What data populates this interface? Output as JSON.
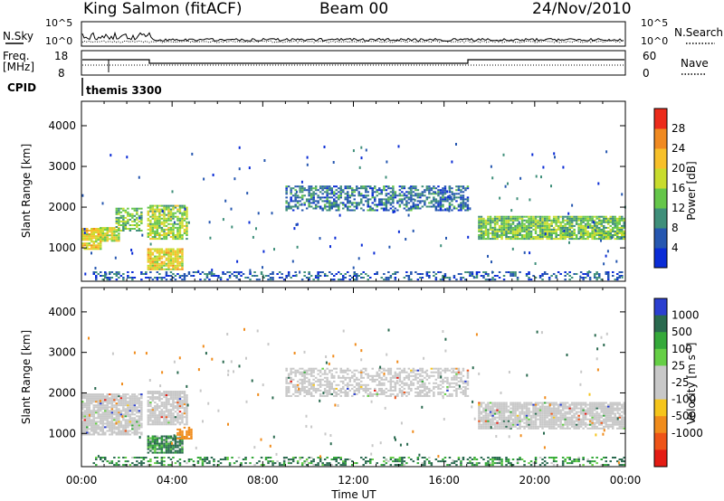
{
  "header": {
    "title_left": "King Salmon (fitACF)",
    "title_center": "Beam 00",
    "title_right": "24/Nov/2010"
  },
  "panels": {
    "nsky": {
      "label": "N.Sky",
      "tick_top": "10^5",
      "tick_bottom": "10^0",
      "right_label": "N.Search",
      "right_tick_top": "10^5",
      "right_tick_bottom": "10^0"
    },
    "freq": {
      "label_line1": "Freq.",
      "label_line2": "[MHz]",
      "tick_top": "18",
      "tick_bottom": "8",
      "right_label": "Nave",
      "right_tick_top": "60",
      "right_tick_bottom": "0"
    },
    "cpid": {
      "label": "CPID",
      "program": "themis 3300"
    }
  },
  "colors": {
    "power": [
      "#0a2cd6",
      "#2657b0",
      "#3f8f7a",
      "#65c64a",
      "#c8dc2e",
      "#f7c02a",
      "#f08a21",
      "#ec2b1b"
    ],
    "velocity": [
      "#2b3fd0",
      "#2a6a4f",
      "#35a93a",
      "#66cf46",
      "#c8c8c8",
      "#c8c8c8",
      "#f5c51c",
      "#f08c1c",
      "#ee5418",
      "#e41c14"
    ],
    "ground_scatter": "#c8c8c8"
  },
  "chart_data": [
    {
      "type": "heatmap",
      "quantity": "Power",
      "xlabel": "",
      "ylabel": "Slant Range [km]",
      "colorbar_label": "Power [dB]",
      "colorbar_ticks": [
        "4",
        "8",
        "12",
        "16",
        "20",
        "24",
        "28"
      ],
      "clim": [
        0,
        32
      ],
      "ylim": [
        180,
        4600
      ],
      "yticks": [
        "1000",
        "2000",
        "3000",
        "4000"
      ],
      "xlim": [
        0,
        24
      ],
      "scatter_regions": [
        {
          "t": [
            0.0,
            0.8
          ],
          "r": [
            950,
            1450
          ],
          "p": 20,
          "density": 0.9
        },
        {
          "t": [
            0.8,
            1.7
          ],
          "r": [
            1150,
            1500
          ],
          "p": 18,
          "density": 0.85
        },
        {
          "t": [
            1.5,
            2.7
          ],
          "r": [
            1400,
            1950
          ],
          "p": 14,
          "density": 0.6
        },
        {
          "t": [
            2.9,
            4.6
          ],
          "r": [
            1200,
            2050
          ],
          "p": 16,
          "density": 0.8
        },
        {
          "t": [
            2.9,
            4.4
          ],
          "r": [
            450,
            950
          ],
          "p": 20,
          "density": 0.9
        },
        {
          "t": [
            9.0,
            17.0
          ],
          "r": [
            1900,
            2500
          ],
          "p": 8,
          "density": 0.55
        },
        {
          "t": [
            17.5,
            24.0
          ],
          "r": [
            1200,
            1750
          ],
          "p": 14,
          "density": 0.85
        },
        {
          "t": [
            0.5,
            24.0
          ],
          "r": [
            200,
            420
          ],
          "p": 6,
          "density": 0.35
        }
      ]
    },
    {
      "type": "heatmap",
      "quantity": "Velocity",
      "xlabel": "Time UT",
      "ylabel": "Slant Range [km]",
      "colorbar_label": "Velocity [m s^-1]",
      "colorbar_ticks": [
        "1000",
        "500",
        "100",
        "25",
        "-25",
        "-100",
        "-500",
        "-1000"
      ],
      "clim": [
        -1250,
        1250
      ],
      "ylim": [
        180,
        4600
      ],
      "yticks": [
        "1000",
        "2000",
        "3000",
        "4000"
      ],
      "xlim": [
        0,
        24
      ],
      "xticks": [
        "00:00",
        "04:00",
        "08:00",
        "12:00",
        "16:00",
        "20:00",
        "00:00"
      ],
      "scatter_regions": [
        {
          "t": [
            0.0,
            2.7
          ],
          "r": [
            950,
            1950
          ],
          "v": "ground",
          "density": 0.85
        },
        {
          "t": [
            2.9,
            4.6
          ],
          "r": [
            1200,
            2050
          ],
          "v": "ground",
          "density": 0.8
        },
        {
          "t": [
            2.9,
            4.4
          ],
          "r": [
            500,
            950
          ],
          "v": 110,
          "density": 0.85
        },
        {
          "t": [
            4.2,
            4.8
          ],
          "r": [
            850,
            1150
          ],
          "v": -250,
          "density": 0.8
        },
        {
          "t": [
            9.0,
            17.0
          ],
          "r": [
            1900,
            2600
          ],
          "v": "ground",
          "density": 0.55
        },
        {
          "t": [
            17.5,
            24.0
          ],
          "r": [
            1100,
            1750
          ],
          "v": "ground",
          "density": 0.85
        },
        {
          "t": [
            0.5,
            24.0
          ],
          "r": [
            200,
            420
          ],
          "v": 110,
          "density": 0.35
        }
      ]
    }
  ]
}
